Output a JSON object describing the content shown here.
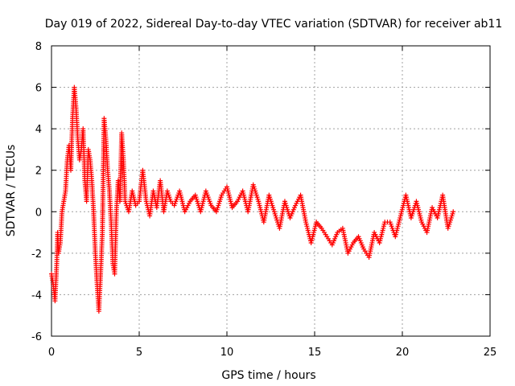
{
  "chart_data": {
    "type": "scatter",
    "title": "Day 019 of 2022, Sidereal Day-to-day VTEC variation (SDTVAR) for receiver ab11",
    "xlabel": "GPS time / hours",
    "ylabel": "SDTVAR / TECUs",
    "xlim": [
      0,
      25
    ],
    "ylim": [
      -6,
      8
    ],
    "xticks": [
      "0",
      "5",
      "10",
      "15",
      "20",
      "25"
    ],
    "yticks": [
      "-6",
      "-4",
      "-2",
      "0",
      "2",
      "4",
      "6",
      "8"
    ],
    "grid": true,
    "marker": "+",
    "color": "#ff0000",
    "series": [
      {
        "name": "SDTVAR",
        "x": [
          0.0,
          0.1,
          0.2,
          0.3,
          0.35,
          0.4,
          0.5,
          0.6,
          0.7,
          0.8,
          0.9,
          1.0,
          1.1,
          1.2,
          1.3,
          1.4,
          1.5,
          1.6,
          1.7,
          1.8,
          1.9,
          2.0,
          2.1,
          2.2,
          2.3,
          2.4,
          2.5,
          2.6,
          2.7,
          2.8,
          2.9,
          3.0,
          3.1,
          3.2,
          3.3,
          3.4,
          3.5,
          3.6,
          3.7,
          3.8,
          3.9,
          4.0,
          4.1,
          4.2,
          4.4,
          4.6,
          4.8,
          5.0,
          5.2,
          5.4,
          5.6,
          5.8,
          6.0,
          6.2,
          6.4,
          6.6,
          6.8,
          7.0,
          7.3,
          7.6,
          7.9,
          8.2,
          8.5,
          8.8,
          9.1,
          9.4,
          9.7,
          10.0,
          10.3,
          10.6,
          10.9,
          11.2,
          11.5,
          11.8,
          12.1,
          12.4,
          12.7,
          13.0,
          13.3,
          13.6,
          13.9,
          14.2,
          14.5,
          14.8,
          15.1,
          15.4,
          15.7,
          16.0,
          16.3,
          16.6,
          16.9,
          17.2,
          17.5,
          17.8,
          18.1,
          18.4,
          18.7,
          19.0,
          19.3,
          19.6,
          19.9,
          20.2,
          20.5,
          20.8,
          21.1,
          21.4,
          21.7,
          22.0,
          22.3,
          22.6,
          22.9
        ],
        "y": [
          -3.0,
          -3.5,
          -4.3,
          -2.5,
          -1.0,
          -2.0,
          -1.5,
          0.0,
          0.5,
          1.0,
          2.5,
          3.2,
          2.0,
          4.5,
          6.0,
          5.0,
          3.5,
          2.5,
          3.0,
          4.0,
          1.5,
          0.5,
          3.0,
          2.5,
          1.5,
          0.0,
          -2.0,
          -3.5,
          -4.8,
          -3.0,
          -1.0,
          4.5,
          3.5,
          2.0,
          1.0,
          -0.5,
          -2.5,
          -3.0,
          0.0,
          1.5,
          0.5,
          3.8,
          2.5,
          0.5,
          0.0,
          1.0,
          0.3,
          0.5,
          2.0,
          0.5,
          -0.2,
          1.0,
          0.2,
          1.5,
          0.0,
          1.0,
          0.5,
          0.3,
          1.0,
          0.0,
          0.5,
          0.8,
          0.0,
          1.0,
          0.3,
          0.0,
          0.8,
          1.2,
          0.2,
          0.5,
          1.0,
          0.0,
          1.3,
          0.5,
          -0.5,
          0.8,
          0.0,
          -0.8,
          0.5,
          -0.3,
          0.3,
          0.8,
          -0.5,
          -1.5,
          -0.5,
          -0.8,
          -1.2,
          -1.6,
          -1.0,
          -0.8,
          -2.0,
          -1.5,
          -1.2,
          -1.8,
          -2.2,
          -1.0,
          -1.5,
          -0.5,
          -0.5,
          -1.2,
          -0.2,
          0.8,
          -0.3,
          0.5,
          -0.5,
          -1.0,
          0.2,
          -0.3,
          0.8,
          -0.8,
          0.0
        ]
      }
    ]
  }
}
